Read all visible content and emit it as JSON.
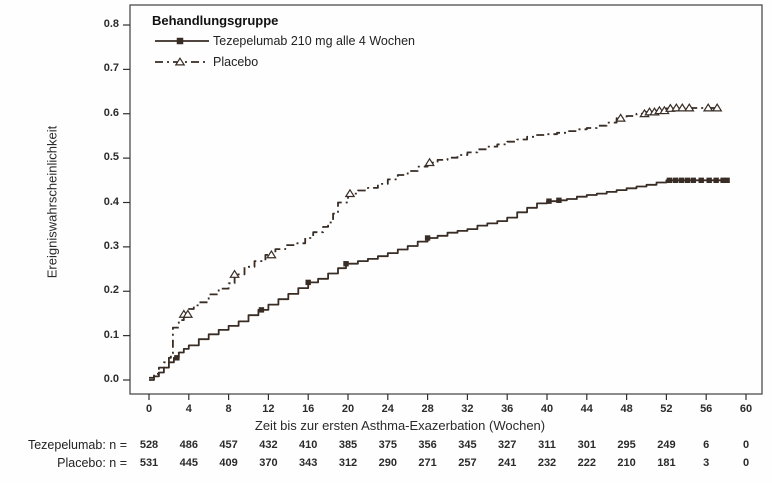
{
  "colors": {
    "curve": "#382c24",
    "text": "#1f1f1f",
    "frame": "#4d4d4d",
    "background": "#fefefe"
  },
  "chart_data": {
    "type": "line",
    "subtype": "kaplan-meier-step",
    "title": "",
    "legend_title": "Behandlungsgruppe",
    "legend_position": "top-left-inside",
    "grid": false,
    "xlabel": "Zeit bis zur ersten Asthma-Exazerbation (Wochen)",
    "ylabel": "Ereigniswahrscheinlichkeit",
    "xlim": [
      0,
      60
    ],
    "ylim": [
      0.0,
      0.8
    ],
    "x_ticks": [
      0,
      4,
      8,
      12,
      16,
      20,
      24,
      28,
      32,
      36,
      40,
      44,
      48,
      52,
      56,
      60
    ],
    "y_ticks": [
      "0.0",
      "0.1",
      "0.2",
      "0.3",
      "0.4",
      "0.5",
      "0.6",
      "0.7",
      "0.8"
    ],
    "series": [
      {
        "name": "Tezepelumab 210 mg alle 4 Wochen",
        "line_style": "solid",
        "marker": "filled-square",
        "points": [
          [
            0,
            0.0
          ],
          [
            0.5,
            0.008
          ],
          [
            1,
            0.017
          ],
          [
            1.5,
            0.028
          ],
          [
            2,
            0.04
          ],
          [
            2.5,
            0.05
          ],
          [
            3,
            0.062
          ],
          [
            3.5,
            0.07
          ],
          [
            4,
            0.078
          ],
          [
            5,
            0.092
          ],
          [
            6,
            0.103
          ],
          [
            7,
            0.113
          ],
          [
            8,
            0.122
          ],
          [
            9,
            0.132
          ],
          [
            10,
            0.146
          ],
          [
            11,
            0.158
          ],
          [
            12,
            0.17
          ],
          [
            13,
            0.182
          ],
          [
            14,
            0.194
          ],
          [
            15,
            0.207
          ],
          [
            16,
            0.22
          ],
          [
            17,
            0.228
          ],
          [
            18,
            0.24
          ],
          [
            19,
            0.252
          ],
          [
            19.8,
            0.262
          ],
          [
            21,
            0.268
          ],
          [
            22,
            0.273
          ],
          [
            23,
            0.279
          ],
          [
            24,
            0.286
          ],
          [
            25,
            0.294
          ],
          [
            26,
            0.302
          ],
          [
            27,
            0.312
          ],
          [
            28,
            0.32
          ],
          [
            29,
            0.325
          ],
          [
            30,
            0.332
          ],
          [
            31,
            0.336
          ],
          [
            32,
            0.34
          ],
          [
            33,
            0.348
          ],
          [
            34,
            0.353
          ],
          [
            35,
            0.358
          ],
          [
            36,
            0.366
          ],
          [
            37,
            0.378
          ],
          [
            38,
            0.388
          ],
          [
            39,
            0.398
          ],
          [
            40,
            0.403
          ],
          [
            41,
            0.405
          ],
          [
            42,
            0.408
          ],
          [
            43,
            0.413
          ],
          [
            44,
            0.417
          ],
          [
            45,
            0.42
          ],
          [
            46,
            0.424
          ],
          [
            47,
            0.428
          ],
          [
            48,
            0.432
          ],
          [
            49,
            0.436
          ],
          [
            50,
            0.44
          ],
          [
            51,
            0.445
          ],
          [
            52,
            0.45
          ],
          [
            58.1,
            0.45
          ]
        ],
        "censor_marks_weeks": [
          2.8,
          11.3,
          16,
          19.8,
          28,
          40.2,
          41.2,
          52.3,
          52.9,
          53.5,
          54.1,
          54.7,
          55.5,
          56.3,
          57,
          57.7,
          58.1
        ]
      },
      {
        "name": "Placebo",
        "line_style": "dash-dot",
        "marker": "open-triangle",
        "points": [
          [
            0,
            0.005
          ],
          [
            0.5,
            0.014
          ],
          [
            1,
            0.028
          ],
          [
            1.5,
            0.04
          ],
          [
            2,
            0.05
          ],
          [
            2.2,
            0.06
          ],
          [
            2.4,
            0.118
          ],
          [
            3,
            0.135
          ],
          [
            3.5,
            0.148
          ],
          [
            4,
            0.16
          ],
          [
            4.5,
            0.168
          ],
          [
            5,
            0.175
          ],
          [
            6,
            0.193
          ],
          [
            7,
            0.206
          ],
          [
            8,
            0.218
          ],
          [
            8.6,
            0.238
          ],
          [
            9.6,
            0.255
          ],
          [
            10.6,
            0.268
          ],
          [
            11.7,
            0.282
          ],
          [
            12.7,
            0.295
          ],
          [
            13.7,
            0.304
          ],
          [
            14.7,
            0.308
          ],
          [
            15.7,
            0.32
          ],
          [
            16.5,
            0.333
          ],
          [
            17.5,
            0.345
          ],
          [
            18,
            0.355
          ],
          [
            18.5,
            0.375
          ],
          [
            19,
            0.4
          ],
          [
            20,
            0.42
          ],
          [
            21,
            0.427
          ],
          [
            22,
            0.433
          ],
          [
            23,
            0.442
          ],
          [
            24,
            0.452
          ],
          [
            25,
            0.462
          ],
          [
            26,
            0.471
          ],
          [
            27,
            0.481
          ],
          [
            28,
            0.49
          ],
          [
            29,
            0.496
          ],
          [
            30,
            0.501
          ],
          [
            31,
            0.507
          ],
          [
            32,
            0.513
          ],
          [
            33,
            0.52
          ],
          [
            34,
            0.526
          ],
          [
            35,
            0.531
          ],
          [
            36,
            0.537
          ],
          [
            37,
            0.542
          ],
          [
            38,
            0.548
          ],
          [
            39,
            0.552
          ],
          [
            40,
            0.554
          ],
          [
            41,
            0.557
          ],
          [
            42,
            0.561
          ],
          [
            43,
            0.565
          ],
          [
            44,
            0.568
          ],
          [
            45,
            0.573
          ],
          [
            46,
            0.58
          ],
          [
            47,
            0.59
          ],
          [
            48,
            0.595
          ],
          [
            49,
            0.6
          ],
          [
            50,
            0.604
          ],
          [
            51,
            0.607
          ],
          [
            52,
            0.612
          ],
          [
            53,
            0.613
          ],
          [
            57.1,
            0.613
          ]
        ],
        "censor_marks_weeks": [
          3.5,
          3.9,
          8.6,
          12.3,
          20.2,
          28.2,
          47.4,
          49.8,
          50.3,
          50.8,
          51.3,
          51.8,
          52.4,
          53,
          53.6,
          54.3,
          56.2,
          57.1
        ]
      }
    ],
    "at_risk_table": {
      "rows": [
        {
          "label": "Tezepelumab: n =",
          "values": [
            528,
            486,
            457,
            432,
            410,
            385,
            375,
            356,
            345,
            327,
            311,
            301,
            295,
            249,
            6,
            0
          ]
        },
        {
          "label": "Placebo: n =",
          "values": [
            531,
            445,
            409,
            370,
            343,
            312,
            290,
            271,
            257,
            241,
            232,
            222,
            210,
            181,
            3,
            0
          ]
        }
      ]
    }
  }
}
